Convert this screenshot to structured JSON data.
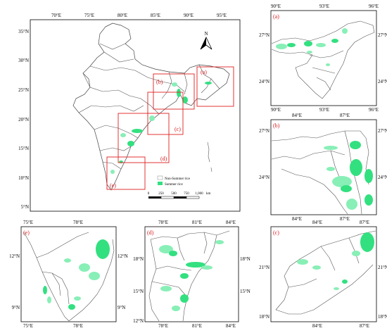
{
  "main_map": {
    "lon_ticks": [
      "70°E",
      "75°E",
      "80°E",
      "85°E",
      "90°E",
      "95°E"
    ],
    "lat_ticks": [
      "35°N",
      "30°N",
      "25°N",
      "20°N",
      "15°N",
      "10°N",
      "5°N"
    ],
    "north_arrow_label": "N",
    "extent_labels": [
      "(a)",
      "(b)",
      "(c)",
      "(d)",
      "(e)"
    ],
    "legend": {
      "items": [
        {
          "label": "Non-Summer rice",
          "color": "#ffffff"
        },
        {
          "label": "Summer rice",
          "color": "#33e080"
        }
      ]
    },
    "scale_bar": {
      "labels": [
        "0",
        "250",
        "500",
        "750",
        "1,000"
      ],
      "unit": "km"
    }
  },
  "panels": {
    "a": {
      "label": "(a)",
      "top_ticks": [
        "90°E",
        "93°E",
        "96°E"
      ],
      "bottom_ticks": [
        "90°E",
        "93°E",
        "96°E"
      ],
      "left_ticks": [
        "27°N",
        "24°N"
      ],
      "right_ticks": [
        "27°N",
        "24°N"
      ]
    },
    "b": {
      "label": "(b)",
      "top_ticks": [
        "84°E",
        "87°E"
      ],
      "bottom_ticks": [
        "84°E",
        "87°E"
      ],
      "left_ticks": [
        "27°N",
        "24°N"
      ],
      "right_ticks": [
        "27°N",
        "24°N"
      ]
    },
    "c": {
      "label": "(c)",
      "top_ticks": [
        "84°E",
        "87°E"
      ],
      "bottom_ticks": [
        "84°E",
        "87°E"
      ],
      "left_ticks": [
        "21°N",
        "18°N"
      ],
      "right_ticks": [
        "21°N",
        "18°N"
      ]
    },
    "d": {
      "label": "(d)",
      "top_ticks": [
        "78°E",
        "81°E",
        "84°E"
      ],
      "bottom_ticks": [
        "78°E",
        "81°E",
        "84°E"
      ],
      "left_ticks": [
        "18°N",
        "15°N",
        "12°N"
      ],
      "right_ticks": [
        "18°N",
        "15°N",
        "12°N"
      ]
    },
    "e": {
      "label": "(e)",
      "top_ticks": [
        "75°E",
        "78°E"
      ],
      "bottom_ticks": [
        "75°E",
        "78°E"
      ],
      "left_ticks": [
        "12°N",
        "9°N"
      ],
      "right_ticks": [
        "12°N",
        "9°N"
      ]
    }
  },
  "colors": {
    "summer_rice": "#33e080",
    "extent_box": "#e02020",
    "panel_label": "#d8191e"
  }
}
